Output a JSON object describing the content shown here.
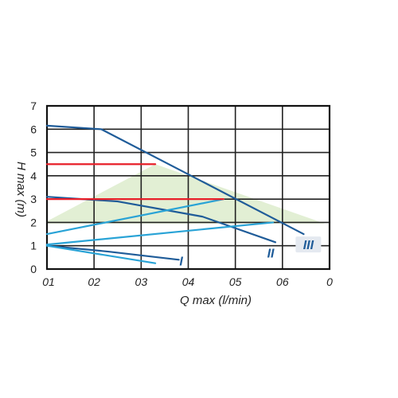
{
  "chart_data": {
    "type": "line",
    "xlabel": "Q max (l/min)",
    "ylabel": "H max (m)",
    "x_tick_labels": [
      "01",
      "02",
      "03",
      "04",
      "05",
      "06",
      "0"
    ],
    "y_tick_labels": [
      "0",
      "1",
      "2",
      "3",
      "4",
      "5",
      "6",
      "7"
    ],
    "xlim": [
      0,
      6
    ],
    "ylim": [
      0,
      7
    ],
    "grid": true,
    "shaded_region": {
      "color": "#e2efd4",
      "points": [
        [
          0,
          2.05
        ],
        [
          2.3,
          4.5
        ],
        [
          5.9,
          1.95
        ],
        [
          0,
          1.95
        ]
      ]
    },
    "series": [
      {
        "name": "III",
        "color": "#1f5c99",
        "label_at": [
          5.55,
          0.95
        ],
        "label_box": true,
        "points": [
          [
            0,
            6.15
          ],
          [
            1.15,
            6.0
          ],
          [
            5.45,
            1.5
          ]
        ]
      },
      {
        "name": "II",
        "color": "#1f5c99",
        "label_at": [
          4.75,
          0.6
        ],
        "label_box": false,
        "points": [
          [
            0,
            3.1
          ],
          [
            1.5,
            2.9
          ],
          [
            3.3,
            2.25
          ],
          [
            4.85,
            1.15
          ]
        ]
      },
      {
        "name": "I",
        "color": "#1f5c99",
        "label_at": [
          2.85,
          0.25
        ],
        "label_box": false,
        "points": [
          [
            0,
            1.0
          ],
          [
            1.3,
            0.75
          ],
          [
            2.8,
            0.4
          ]
        ]
      },
      {
        "name": "",
        "color": "#29a3d6",
        "points": [
          [
            0,
            1.5
          ],
          [
            3.75,
            3.0
          ]
        ]
      },
      {
        "name": "",
        "color": "#29a3d6",
        "points": [
          [
            0,
            1.05
          ],
          [
            4.8,
            2.0
          ]
        ]
      },
      {
        "name": "",
        "color": "#29a3d6",
        "points": [
          [
            0,
            1.0
          ],
          [
            2.3,
            0.25
          ]
        ]
      },
      {
        "name": "",
        "color": "#e8202a",
        "points": [
          [
            0,
            4.5
          ],
          [
            2.3,
            4.5
          ]
        ]
      },
      {
        "name": "",
        "color": "#e8202a",
        "points": [
          [
            0,
            3.0
          ],
          [
            3.75,
            3.0
          ]
        ]
      }
    ]
  }
}
